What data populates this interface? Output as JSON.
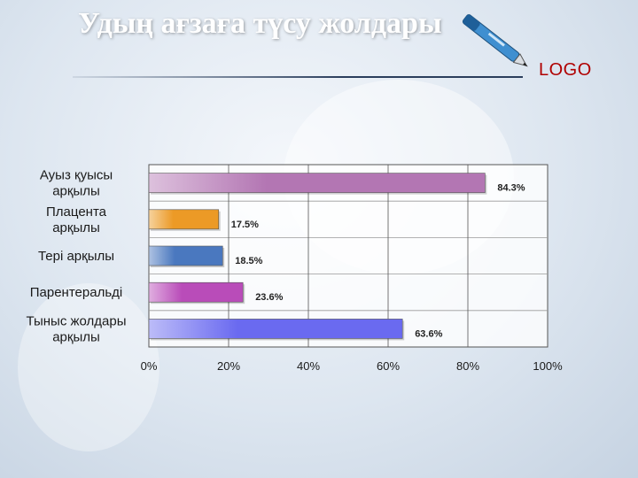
{
  "slide": {
    "title": "Удың ағзаға түсу жолдары",
    "logo_text": "LOGO"
  },
  "chart_data": {
    "type": "bar",
    "orientation": "horizontal",
    "categories": [
      [
        "Ауыз қуысы",
        "арқылы"
      ],
      [
        "Плацента",
        "арқылы"
      ],
      [
        "Тері арқылы"
      ],
      [
        "Парентеральді"
      ],
      [
        "Тыныс жолдары",
        "арқылы"
      ]
    ],
    "values": [
      84.3,
      17.5,
      18.5,
      23.6,
      63.6
    ],
    "value_labels": [
      "84.3%",
      "17.5%",
      "18.5%",
      "23.6%",
      "63.6%"
    ],
    "bar_colors": [
      "#b376b3",
      "#ec9a26",
      "#4a78bf",
      "#b94cb9",
      "#6a6af0"
    ],
    "xlim": [
      0,
      100
    ],
    "xticks": [
      "0%",
      "20%",
      "40%",
      "60%",
      "80%",
      "100%"
    ],
    "grid": true,
    "title": "",
    "xlabel": "",
    "ylabel": ""
  }
}
